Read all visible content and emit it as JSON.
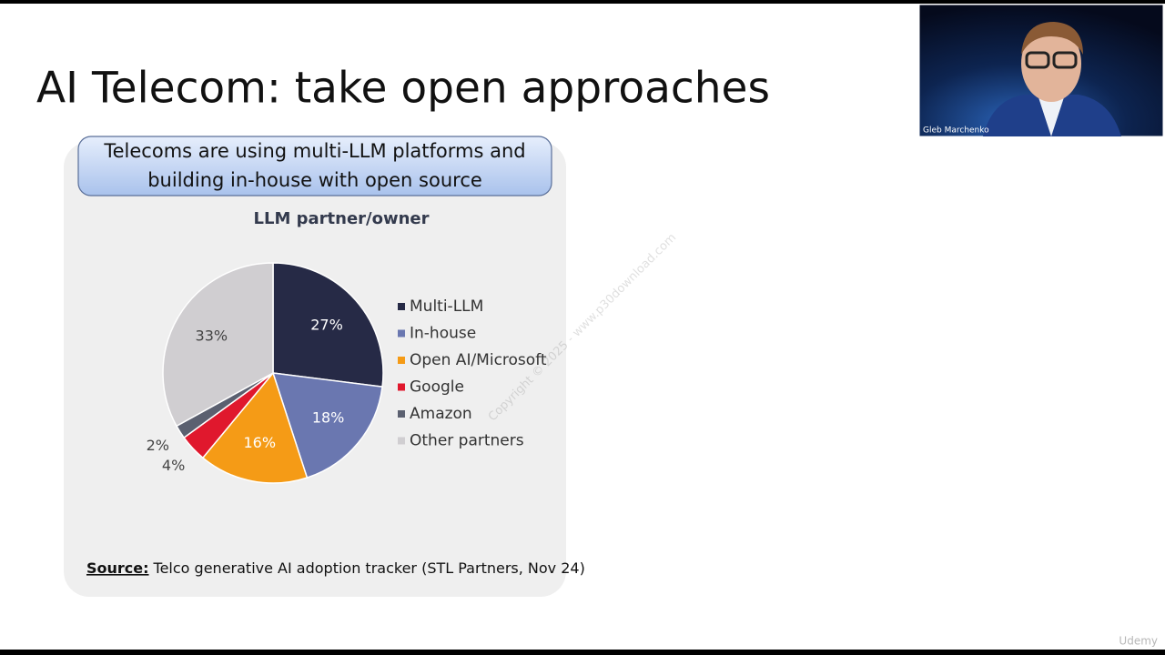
{
  "slide_title": "AI Telecom: take open approaches",
  "callout_lines": [
    "Telecoms are using multi-LLM platforms and",
    "building in-house with open source"
  ],
  "source": {
    "label": "Source:",
    "text": "Telco generative AI adoption tracker (STL Partners, Nov 24)"
  },
  "watermark": "Copyright © 2025 - www.p30download.com",
  "presenter_name": "Gleb Marchenko",
  "platform": "Udemy",
  "chart_data": {
    "type": "pie",
    "title": "LLM partner/owner",
    "categories": [
      "Multi-LLM",
      "In-house",
      "Open AI/Microsoft",
      "Google",
      "Amazon",
      "Other partners"
    ],
    "values": [
      27,
      18,
      16,
      4,
      2,
      33
    ],
    "value_labels": [
      "27%",
      "18%",
      "16%",
      "4%",
      "2%",
      "33%"
    ],
    "colors": [
      "#262a46",
      "#6a77b0",
      "#f59b16",
      "#e0182d",
      "#5b6070",
      "#d0ced1"
    ],
    "legend": "right"
  }
}
